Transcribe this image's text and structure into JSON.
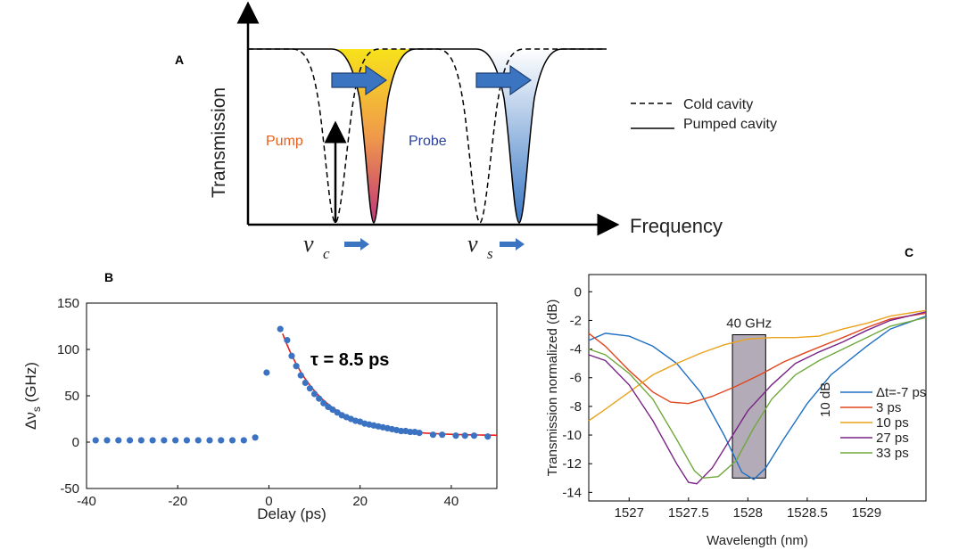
{
  "panel_a": {
    "label": "A",
    "ylabel": "Transmission",
    "xlabel": "Frequency",
    "pump_label": "Pump",
    "probe_label": "Probe",
    "nu_c_label": "c",
    "nu_s_label": "s",
    "legend": [
      {
        "label": "Cold cavity",
        "style": "dashed"
      },
      {
        "label": "Pumped cavity",
        "style": "solid"
      }
    ],
    "colors": {
      "pump_top": "#f7e21b",
      "pump_mid": "#f09a4a",
      "pump_bottom": "#c0357a",
      "probe_top": "#ffffff",
      "probe_bottom": "#3a78c4",
      "arrow": "#3b74c0",
      "pump_text": "#e8601c",
      "probe_text": "#2a3fa0"
    }
  },
  "chart_data": [
    {
      "panel": "B",
      "type": "scatter",
      "xlabel": "Delay (ps)",
      "ylabel": "Δν",
      "ylabel_sub": "s",
      "ylabel_unit": " (GHz)",
      "xlim": [
        -40,
        50
      ],
      "ylim": [
        -50,
        150
      ],
      "xticks": [
        -40,
        -20,
        0,
        20,
        40
      ],
      "yticks": [
        -50,
        0,
        50,
        100,
        150
      ],
      "annotation": "τ = 8.5 ps",
      "marker_color": "#3b73c2",
      "fit_color": "#e4211c",
      "points": [
        [
          -38,
          2
        ],
        [
          -35.5,
          2
        ],
        [
          -33,
          2
        ],
        [
          -30.5,
          2
        ],
        [
          -28,
          2
        ],
        [
          -25.5,
          2
        ],
        [
          -23,
          2
        ],
        [
          -20.5,
          2
        ],
        [
          -18,
          2
        ],
        [
          -15.5,
          2
        ],
        [
          -13,
          2
        ],
        [
          -10.5,
          2
        ],
        [
          -8,
          2
        ],
        [
          -5.5,
          2
        ],
        [
          -3,
          5
        ],
        [
          -0.5,
          75
        ],
        [
          2.5,
          122
        ],
        [
          4,
          110
        ],
        [
          5,
          93
        ],
        [
          6,
          82
        ],
        [
          7,
          72
        ],
        [
          8,
          64
        ],
        [
          9,
          58
        ],
        [
          10,
          52
        ],
        [
          11,
          47
        ],
        [
          12,
          42
        ],
        [
          13,
          38
        ],
        [
          14,
          35
        ],
        [
          15,
          32
        ],
        [
          16,
          29
        ],
        [
          17,
          27
        ],
        [
          18,
          25
        ],
        [
          19,
          23
        ],
        [
          20,
          22
        ],
        [
          21,
          20
        ],
        [
          22,
          19
        ],
        [
          23,
          18
        ],
        [
          24,
          17
        ],
        [
          25,
          16
        ],
        [
          26,
          15
        ],
        [
          27,
          14
        ],
        [
          28,
          13
        ],
        [
          29,
          12
        ],
        [
          30,
          12
        ],
        [
          31,
          11
        ],
        [
          32,
          11
        ],
        [
          33,
          10
        ],
        [
          36,
          8
        ],
        [
          38,
          8
        ],
        [
          41,
          7
        ],
        [
          43,
          7
        ],
        [
          45,
          7
        ],
        [
          48,
          6
        ]
      ],
      "fit": {
        "t0": 3,
        "amplitude": 110,
        "tau": 8.5,
        "offset": 7,
        "x_end": 50
      }
    },
    {
      "panel": "C",
      "type": "line",
      "xlabel": "Wavelength (nm)",
      "ylabel": "Transmission normalized (dB)",
      "xlim": [
        1526.66,
        1529.5
      ],
      "ylim": [
        -14.6,
        1.2
      ],
      "xticks": [
        1527,
        1527.5,
        1528,
        1528.5,
        1529
      ],
      "xtick_labels": [
        "1527",
        "1527.5",
        "1528",
        "1528.5",
        "1529"
      ],
      "yticks": [
        0,
        -2,
        -4,
        -6,
        -8,
        -10,
        -12,
        -14
      ],
      "box": {
        "x0": 1527.87,
        "x1": 1528.15,
        "y0": -3,
        "y1": -13,
        "label": "40 GHz",
        "color": "#b3abb8"
      },
      "scale_label": "10 dB",
      "series": [
        {
          "name": "Δt=-7 ps",
          "color": "#1f6fc4",
          "points": [
            [
              1526.66,
              -3.4
            ],
            [
              1526.8,
              -2.9
            ],
            [
              1527,
              -3.1
            ],
            [
              1527.2,
              -3.8
            ],
            [
              1527.4,
              -5.0
            ],
            [
              1527.6,
              -7.0
            ],
            [
              1527.8,
              -10.0
            ],
            [
              1527.95,
              -12.6
            ],
            [
              1528.05,
              -13.1
            ],
            [
              1528.15,
              -12.3
            ],
            [
              1528.3,
              -10.3
            ],
            [
              1528.5,
              -7.8
            ],
            [
              1528.7,
              -5.8
            ],
            [
              1529,
              -3.8
            ],
            [
              1529.2,
              -2.6
            ],
            [
              1529.5,
              -1.7
            ]
          ]
        },
        {
          "name": "3 ps",
          "color": "#e0461d",
          "points": [
            [
              1526.66,
              -2.9
            ],
            [
              1526.8,
              -3.8
            ],
            [
              1527,
              -5.5
            ],
            [
              1527.2,
              -7.0
            ],
            [
              1527.35,
              -7.7
            ],
            [
              1527.5,
              -7.8
            ],
            [
              1527.7,
              -7.3
            ],
            [
              1527.9,
              -6.6
            ],
            [
              1528.1,
              -5.8
            ],
            [
              1528.3,
              -4.9
            ],
            [
              1528.5,
              -4.2
            ],
            [
              1528.8,
              -3.2
            ],
            [
              1529,
              -2.5
            ],
            [
              1529.2,
              -1.9
            ],
            [
              1529.5,
              -1.5
            ]
          ]
        },
        {
          "name": "10 ps",
          "color": "#e9a31c",
          "points": [
            [
              1526.66,
              -9.0
            ],
            [
              1526.8,
              -8.2
            ],
            [
              1527,
              -7.0
            ],
            [
              1527.2,
              -5.8
            ],
            [
              1527.4,
              -5.0
            ],
            [
              1527.6,
              -4.3
            ],
            [
              1527.8,
              -3.7
            ],
            [
              1528.0,
              -3.3
            ],
            [
              1528.2,
              -3.2
            ],
            [
              1528.4,
              -3.2
            ],
            [
              1528.6,
              -3.1
            ],
            [
              1528.8,
              -2.6
            ],
            [
              1529,
              -2.2
            ],
            [
              1529.2,
              -1.7
            ],
            [
              1529.5,
              -1.3
            ]
          ]
        },
        {
          "name": "27 ps",
          "color": "#7a2387",
          "points": [
            [
              1526.66,
              -4.4
            ],
            [
              1526.8,
              -4.8
            ],
            [
              1527,
              -6.5
            ],
            [
              1527.2,
              -9.0
            ],
            [
              1527.4,
              -12.0
            ],
            [
              1527.5,
              -13.3
            ],
            [
              1527.57,
              -13.4
            ],
            [
              1527.7,
              -12.3
            ],
            [
              1527.85,
              -10.3
            ],
            [
              1528,
              -8.3
            ],
            [
              1528.2,
              -6.5
            ],
            [
              1528.4,
              -5.0
            ],
            [
              1528.6,
              -4.2
            ],
            [
              1528.8,
              -3.5
            ],
            [
              1529,
              -2.7
            ],
            [
              1529.2,
              -2.0
            ],
            [
              1529.5,
              -1.4
            ]
          ]
        },
        {
          "name": "33 ps",
          "color": "#70a83b",
          "points": [
            [
              1526.66,
              -4.0
            ],
            [
              1526.8,
              -4.4
            ],
            [
              1527,
              -5.7
            ],
            [
              1527.2,
              -7.5
            ],
            [
              1527.4,
              -10.3
            ],
            [
              1527.55,
              -12.5
            ],
            [
              1527.62,
              -13.0
            ],
            [
              1527.75,
              -12.9
            ],
            [
              1527.9,
              -11.8
            ],
            [
              1528.05,
              -9.5
            ],
            [
              1528.2,
              -7.5
            ],
            [
              1528.4,
              -5.8
            ],
            [
              1528.6,
              -4.8
            ],
            [
              1528.8,
              -4.0
            ],
            [
              1529,
              -3.2
            ],
            [
              1529.2,
              -2.4
            ],
            [
              1529.5,
              -1.8
            ]
          ]
        }
      ]
    }
  ]
}
